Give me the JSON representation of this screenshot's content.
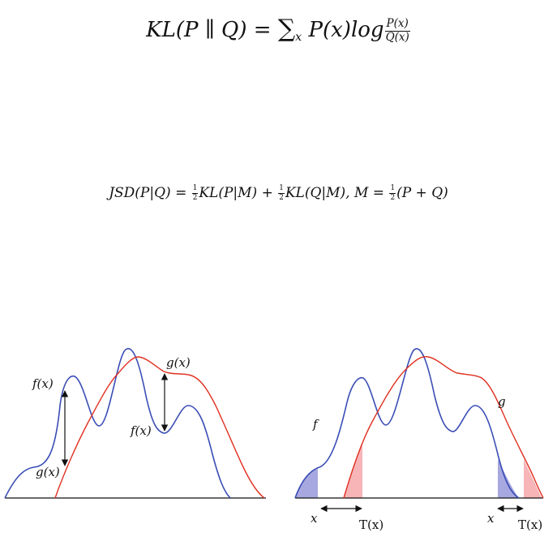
{
  "formulas": {
    "kl": {
      "lhs": "KL(P ∥ Q) = ",
      "sum": "∑",
      "sum_sub": "x",
      "term": " P(x)log",
      "frac_num": "P(x)",
      "frac_den": "Q(x)"
    },
    "jsd": {
      "lhs": "JSD(P|Q) = ",
      "half": "1",
      "two": "2",
      "kl_pm": "KL(P|M) + ",
      "kl_qm": "KL(Q|M), M = ",
      "pq": "(P + Q)"
    }
  },
  "left_plot": {
    "label_f_top": "f(x)",
    "label_g_bottom": "g(x)",
    "label_g_top": "g(x)",
    "label_f_bottom": "f(x)"
  },
  "right_plot": {
    "label_f": "f",
    "label_g": "g",
    "label_x_left": "x",
    "label_T_left": "T(x)",
    "label_x_right": "x",
    "label_T_right": "T(x)"
  },
  "colors": {
    "f_curve": "#3a4db5",
    "g_curve": "#e03020",
    "f_fill": "#a7a8e0",
    "g_fill": "#f7b5b8",
    "axis": "#111111"
  }
}
